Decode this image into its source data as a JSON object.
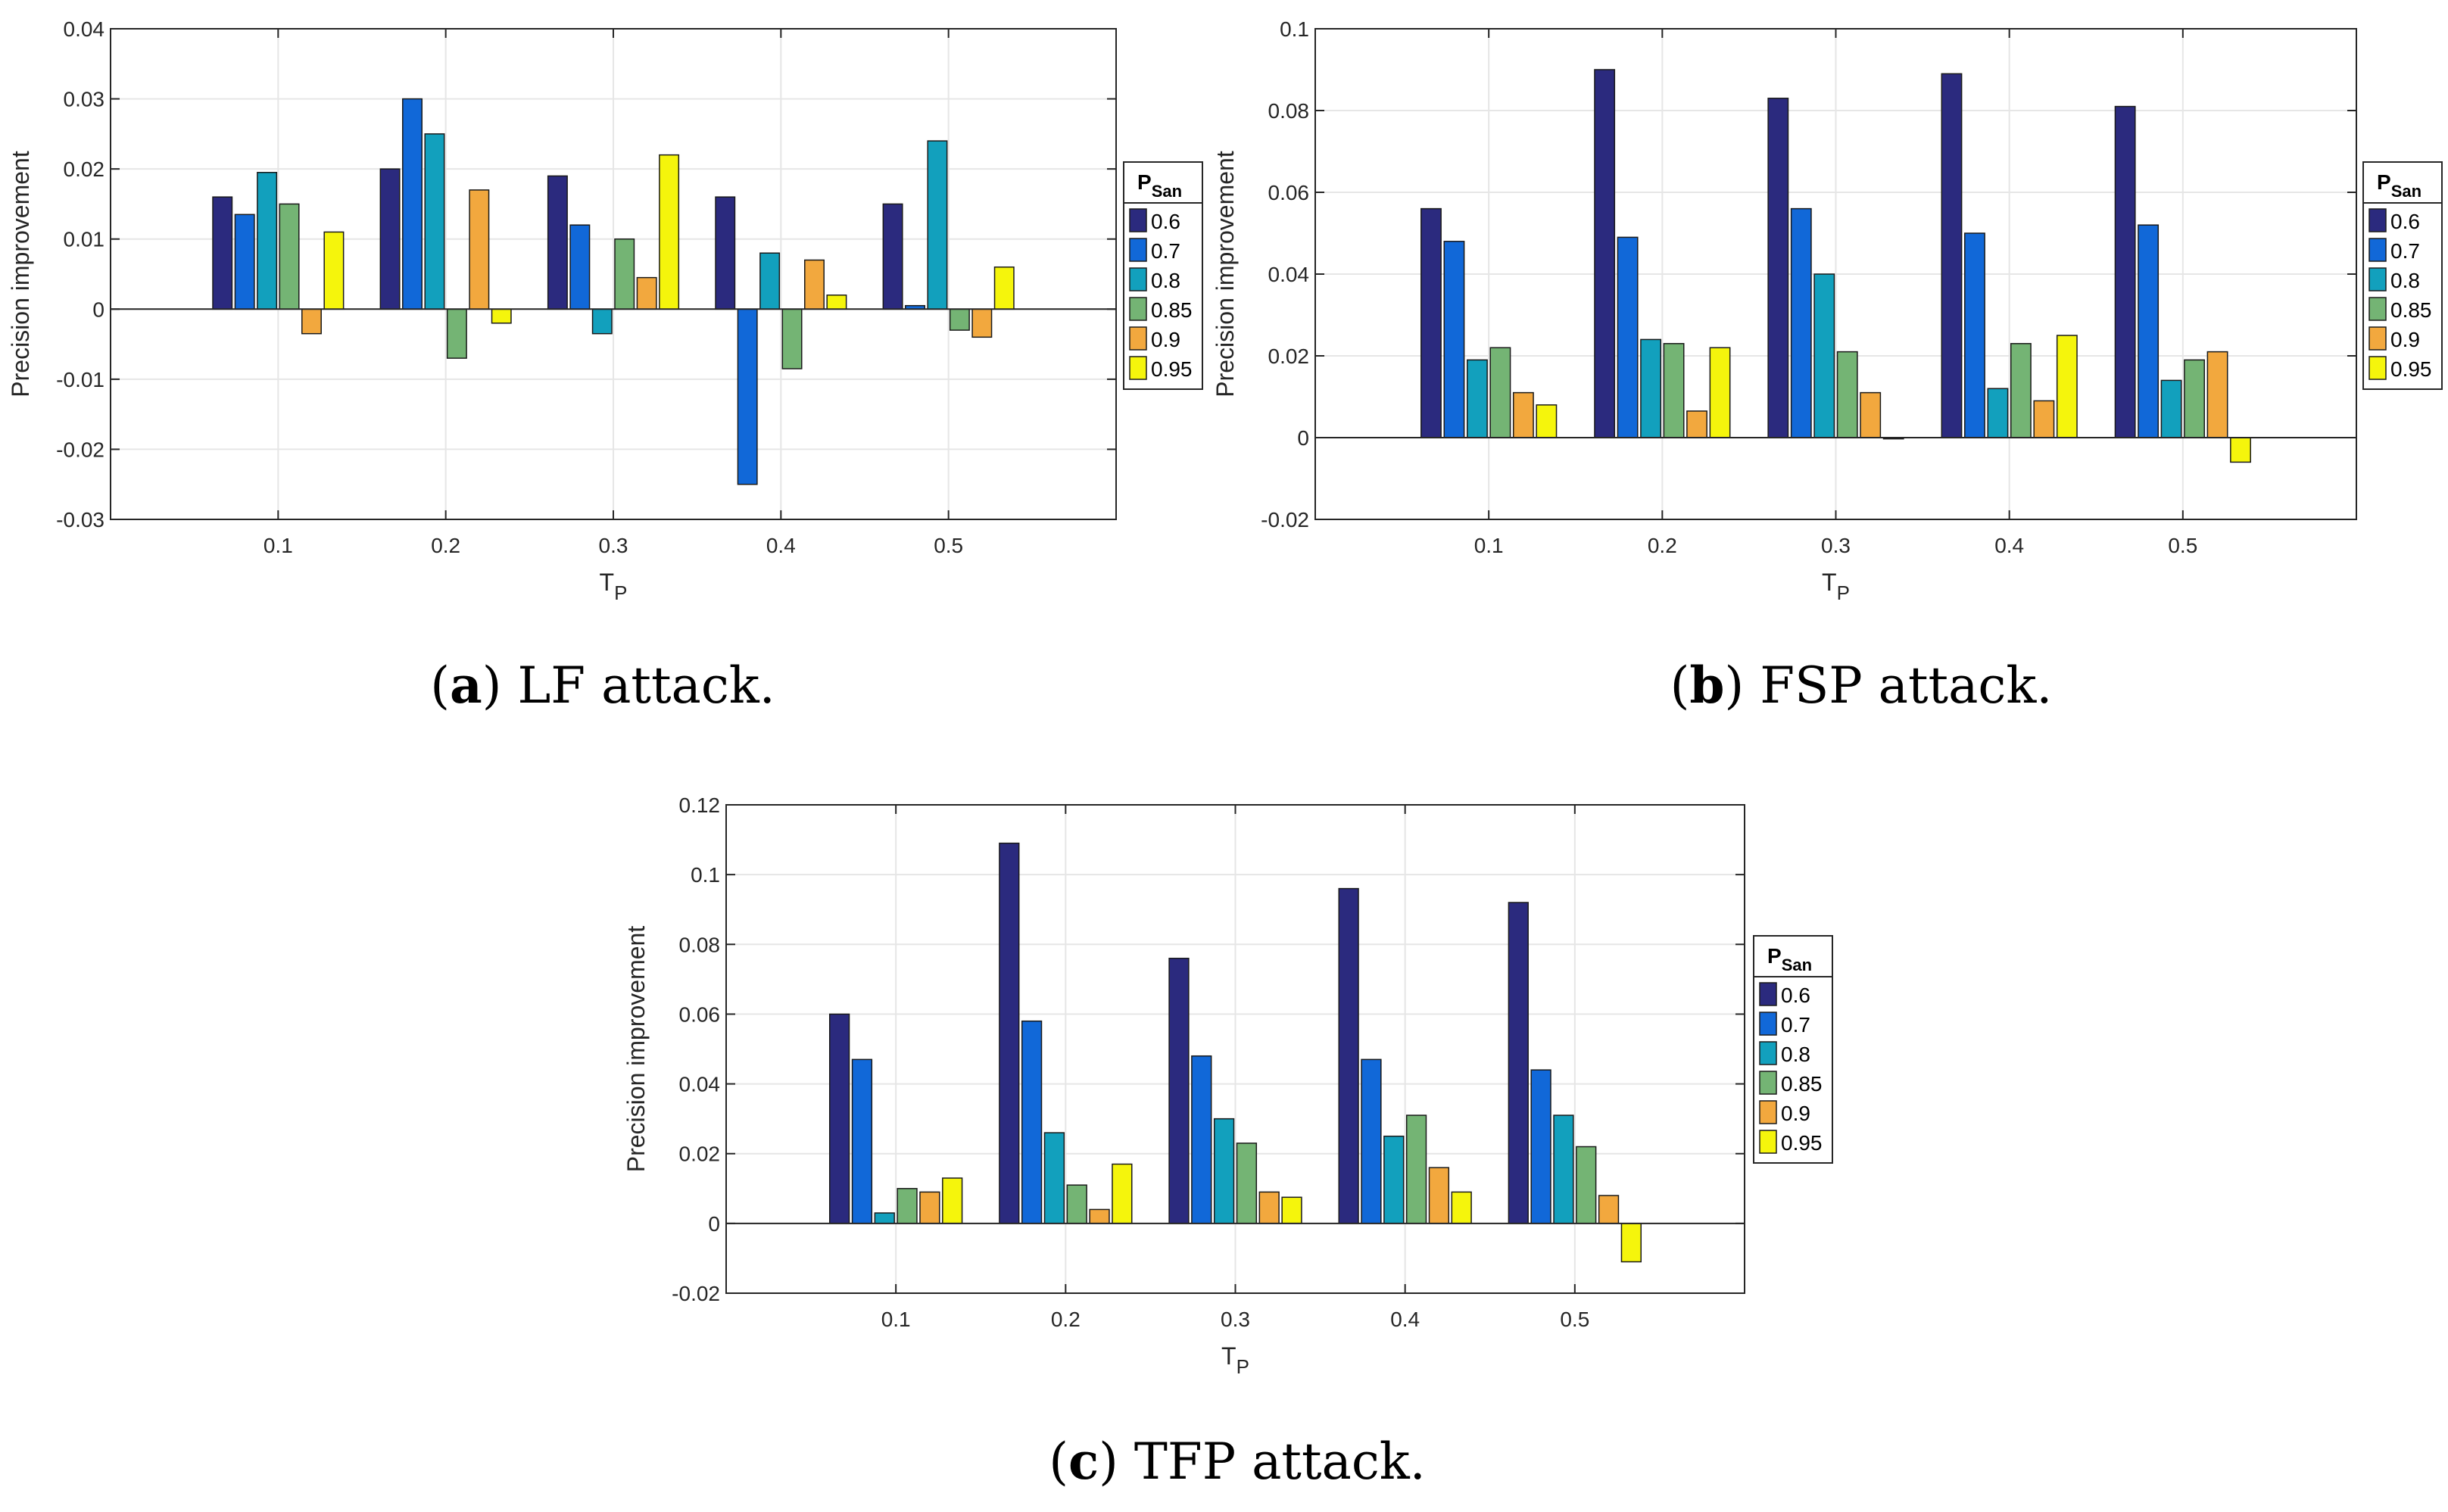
{
  "legend": {
    "title": "P",
    "title_sub": "San",
    "entries": [
      "0.6",
      "0.7",
      "0.8",
      "0.85",
      "0.9",
      "0.95"
    ]
  },
  "series_colors": [
    "#2b2a7e",
    "#1168d8",
    "#12a0bd",
    "#74b474",
    "#f2a83e",
    "#f5f50c"
  ],
  "chart_data": [
    {
      "type": "bar",
      "panel": "a",
      "caption_label": "a",
      "caption_text": "LF attack.",
      "xlabel": "T",
      "xlabel_sub": "P",
      "ylabel": "Precision improvement",
      "categories": [
        "0.1",
        "0.2",
        "0.3",
        "0.4",
        "0.5"
      ],
      "ylim": [
        -0.03,
        0.04
      ],
      "yticks": [
        -0.03,
        -0.02,
        -0.01,
        0,
        0.01,
        0.02,
        0.03,
        0.04
      ],
      "ytick_labels": [
        "-0.03",
        "-0.02",
        "-0.01",
        "0",
        "0.01",
        "0.02",
        "0.03",
        "0.04"
      ],
      "series": [
        {
          "name": "0.6",
          "values": [
            0.016,
            0.02,
            0.019,
            0.016,
            0.015
          ]
        },
        {
          "name": "0.7",
          "values": [
            0.0135,
            0.03,
            0.012,
            -0.025,
            0.0005
          ]
        },
        {
          "name": "0.8",
          "values": [
            0.0195,
            0.025,
            -0.0035,
            0.008,
            0.024
          ]
        },
        {
          "name": "0.85",
          "values": [
            0.015,
            -0.007,
            0.01,
            -0.0085,
            -0.003
          ]
        },
        {
          "name": "0.9",
          "values": [
            -0.0035,
            0.017,
            0.0045,
            0.007,
            -0.004
          ]
        },
        {
          "name": "0.95",
          "values": [
            0.011,
            -0.002,
            0.022,
            0.002,
            0.006
          ]
        }
      ]
    },
    {
      "type": "bar",
      "panel": "b",
      "caption_label": "b",
      "caption_text": "FSP attack.",
      "xlabel": "T",
      "xlabel_sub": "P",
      "ylabel": "Precision improvement",
      "categories": [
        "0.1",
        "0.2",
        "0.3",
        "0.4",
        "0.5"
      ],
      "ylim": [
        -0.02,
        0.1
      ],
      "yticks": [
        -0.02,
        0,
        0.02,
        0.04,
        0.06,
        0.08,
        0.1
      ],
      "ytick_labels": [
        "-0.02",
        "0",
        "0.02",
        "0.04",
        "0.06",
        "0.08",
        "0.1"
      ],
      "series": [
        {
          "name": "0.6",
          "values": [
            0.056,
            0.09,
            0.083,
            0.089,
            0.081
          ]
        },
        {
          "name": "0.7",
          "values": [
            0.048,
            0.049,
            0.056,
            0.05,
            0.052
          ]
        },
        {
          "name": "0.8",
          "values": [
            0.019,
            0.024,
            0.04,
            0.012,
            0.014
          ]
        },
        {
          "name": "0.85",
          "values": [
            0.022,
            0.023,
            0.021,
            0.023,
            0.019
          ]
        },
        {
          "name": "0.9",
          "values": [
            0.011,
            0.0065,
            0.011,
            0.009,
            0.021
          ]
        },
        {
          "name": "0.95",
          "values": [
            0.008,
            0.022,
            -0.0003,
            0.025,
            -0.006
          ]
        }
      ]
    },
    {
      "type": "bar",
      "panel": "c",
      "caption_label": "c",
      "caption_text": "TFP attack.",
      "xlabel": "T",
      "xlabel_sub": "P",
      "ylabel": "Precision improvement",
      "categories": [
        "0.1",
        "0.2",
        "0.3",
        "0.4",
        "0.5"
      ],
      "ylim": [
        -0.02,
        0.12
      ],
      "yticks": [
        -0.02,
        0,
        0.02,
        0.04,
        0.06,
        0.08,
        0.1,
        0.12
      ],
      "ytick_labels": [
        "-0.02",
        "0",
        "0.02",
        "0.04",
        "0.06",
        "0.08",
        "0.1",
        "0.12"
      ],
      "series": [
        {
          "name": "0.6",
          "values": [
            0.06,
            0.109,
            0.076,
            0.096,
            0.092
          ]
        },
        {
          "name": "0.7",
          "values": [
            0.047,
            0.058,
            0.048,
            0.047,
            0.044
          ]
        },
        {
          "name": "0.8",
          "values": [
            0.003,
            0.026,
            0.03,
            0.025,
            0.031
          ]
        },
        {
          "name": "0.85",
          "values": [
            0.01,
            0.011,
            0.023,
            0.031,
            0.022
          ]
        },
        {
          "name": "0.9",
          "values": [
            0.009,
            0.004,
            0.009,
            0.016,
            0.008
          ]
        },
        {
          "name": "0.95",
          "values": [
            0.013,
            0.017,
            0.0075,
            0.009,
            -0.011
          ]
        }
      ]
    }
  ]
}
